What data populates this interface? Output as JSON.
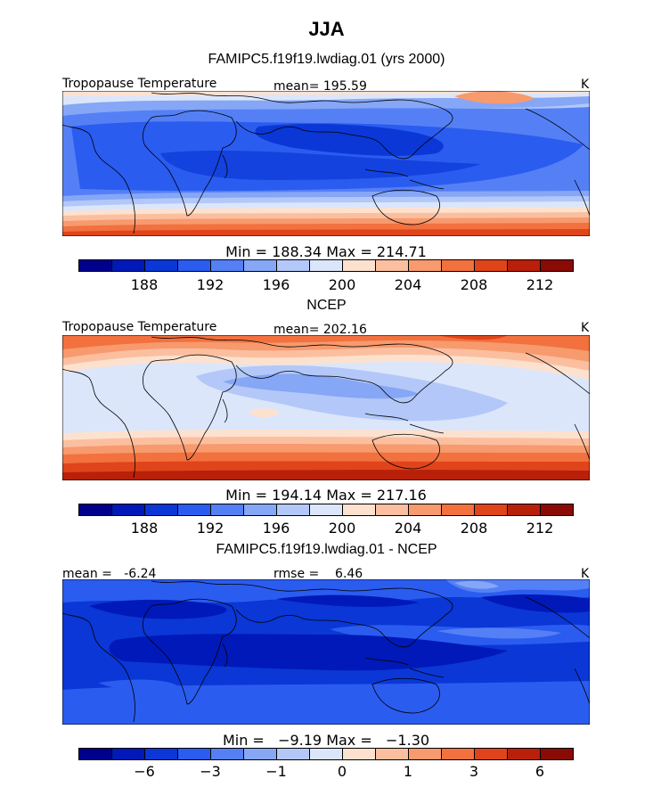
{
  "title": "JJA",
  "palette": [
    "#00008c",
    "#0019b8",
    "#0a37d6",
    "#2b5cf0",
    "#5580f5",
    "#86a6f6",
    "#b3c8f8",
    "#dbe6fb",
    "#fde1cf",
    "#fbbfa0",
    "#f79a6e",
    "#f2713f",
    "#e0441a",
    "#b8200a",
    "#8a0a06"
  ],
  "panels": [
    {
      "subtitle": "FAMIPC5.f19f19.lwdiag.01 (yrs 2000)",
      "left_label": "Tropopause Temperature",
      "mid_label": "mean= 195.59",
      "units": "K",
      "minmax": "Min = 188.34 Max = 214.71",
      "ticks": [
        "188",
        "192",
        "196",
        "200",
        "204",
        "208",
        "212"
      ]
    },
    {
      "subtitle": "NCEP",
      "left_label": "Tropopause Temperature",
      "mid_label": "mean= 202.16",
      "units": "K",
      "minmax": "Min = 194.14 Max = 217.16",
      "ticks": [
        "188",
        "192",
        "196",
        "200",
        "204",
        "208",
        "212"
      ]
    },
    {
      "subtitle": "FAMIPC5.f19f19.lwdiag.01 - NCEP",
      "left_label": "mean =   -6.24",
      "mid_label": "rmse =    6.46",
      "units": "K",
      "minmax": "Min =   −9.19 Max =   −1.30",
      "ticks": [
        "−6",
        "−3",
        "−1",
        "0",
        "1",
        "3",
        "6"
      ]
    }
  ],
  "chart_data": [
    {
      "type": "heatmap",
      "title": "FAMIPC5.f19f19.lwdiag.01 (yrs 2000)",
      "variable": "Tropopause Temperature",
      "units": "K",
      "mean": 195.59,
      "min": 188.34,
      "max": 214.71,
      "colorbar_levels": [
        188,
        190,
        192,
        194,
        196,
        198,
        200,
        202,
        204,
        206,
        208,
        210,
        212,
        214
      ],
      "colorbar_tick_labels": [
        188,
        192,
        196,
        200,
        204,
        208,
        212
      ]
    },
    {
      "type": "heatmap",
      "title": "NCEP",
      "variable": "Tropopause Temperature",
      "units": "K",
      "mean": 202.16,
      "min": 194.14,
      "max": 217.16,
      "colorbar_levels": [
        188,
        190,
        192,
        194,
        196,
        198,
        200,
        202,
        204,
        206,
        208,
        210,
        212,
        214
      ],
      "colorbar_tick_labels": [
        188,
        192,
        196,
        200,
        204,
        208,
        212
      ]
    },
    {
      "type": "heatmap",
      "title": "FAMIPC5.f19f19.lwdiag.01 - NCEP",
      "units": "K",
      "mean": -6.24,
      "rmse": 6.46,
      "min": -9.19,
      "max": -1.3,
      "colorbar_levels": [
        -8,
        -6,
        -4,
        -3,
        -2,
        -1,
        -0.5,
        0,
        0.5,
        1,
        2,
        3,
        4,
        6
      ],
      "colorbar_tick_labels": [
        -6,
        -3,
        -1,
        0,
        1,
        3,
        6
      ]
    }
  ]
}
